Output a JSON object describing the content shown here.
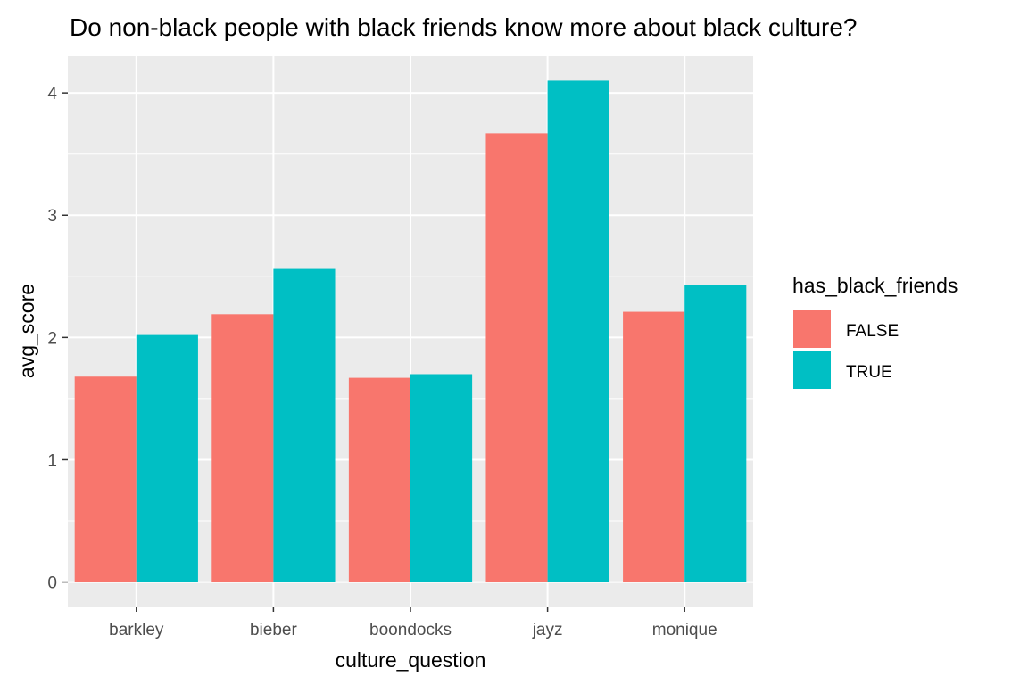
{
  "chart_data": {
    "type": "bar",
    "title": "Do non-black people with black friends know more about black culture?",
    "xlabel": "culture_question",
    "ylabel": "avg_score",
    "categories": [
      "barkley",
      "bieber",
      "boondocks",
      "jayz",
      "monique"
    ],
    "series": [
      {
        "name": "FALSE",
        "color": "#F8766D",
        "values": [
          1.68,
          2.19,
          1.67,
          3.67,
          2.21
        ]
      },
      {
        "name": "TRUE",
        "color": "#00BFC4",
        "values": [
          2.02,
          2.56,
          1.7,
          4.1,
          2.43
        ]
      }
    ],
    "ylim": [
      -0.2,
      4.3
    ],
    "yticks": [
      0,
      1,
      2,
      3,
      4
    ],
    "ytick_labels": [
      "0",
      "1",
      "2",
      "3",
      "4"
    ],
    "legend": {
      "title": "has_black_friends",
      "position": "right"
    },
    "grid": true,
    "panel_background": "#EBEBEB"
  }
}
